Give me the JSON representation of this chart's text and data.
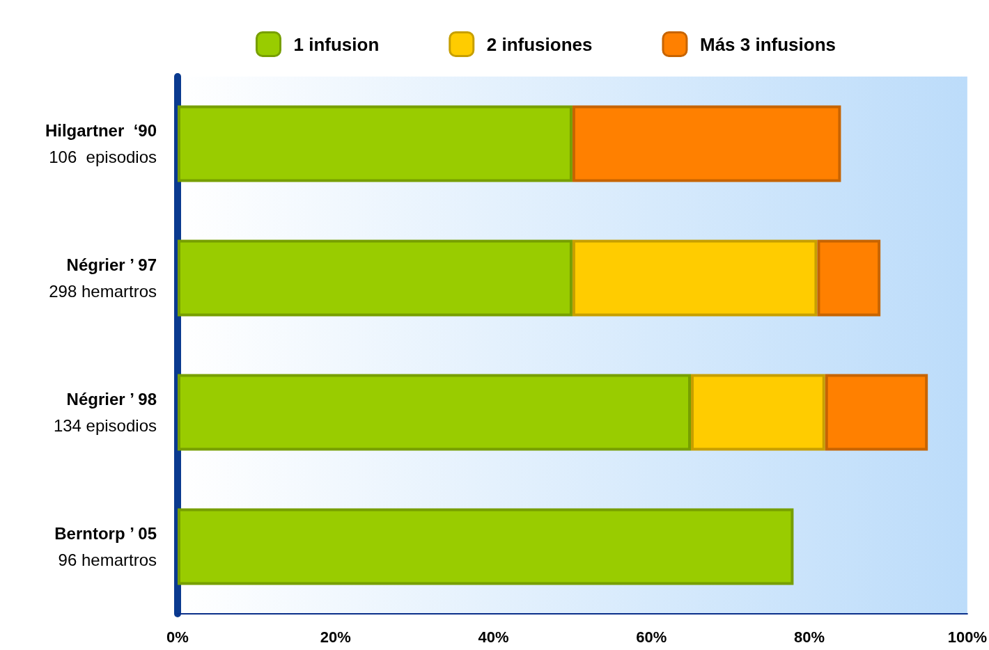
{
  "chart_data": {
    "type": "bar",
    "orientation": "horizontal",
    "stacked": true,
    "categories": [
      "Hilgartner  ‘90\n106  episodios",
      "Négrier ’ 97\n298 hemartros",
      "Négrier ’ 98\n134 episodios",
      "Berntorp ’ 05\n96 hemartros"
    ],
    "series": [
      {
        "name": "1 infusion",
        "color": "#99cc00",
        "values": [
          50,
          50,
          65,
          78
        ]
      },
      {
        "name": "2 infusiones",
        "color": "#ffcc00",
        "values": [
          null,
          31,
          17,
          null
        ]
      },
      {
        "name": "Más 3 infusions",
        "color": "#ff8000",
        "values": [
          34,
          8,
          13,
          null
        ]
      }
    ],
    "xlim": [
      0,
      100
    ],
    "xticks": [
      {
        "value": 0,
        "label": "0%"
      },
      {
        "value": 20,
        "label": "20%"
      },
      {
        "value": 40,
        "label": "40%"
      },
      {
        "value": 60,
        "label": "60%"
      },
      {
        "value": 80,
        "label": "80%"
      },
      {
        "value": 100,
        "label": "100%"
      }
    ],
    "grid": false,
    "legend": "top"
  }
}
